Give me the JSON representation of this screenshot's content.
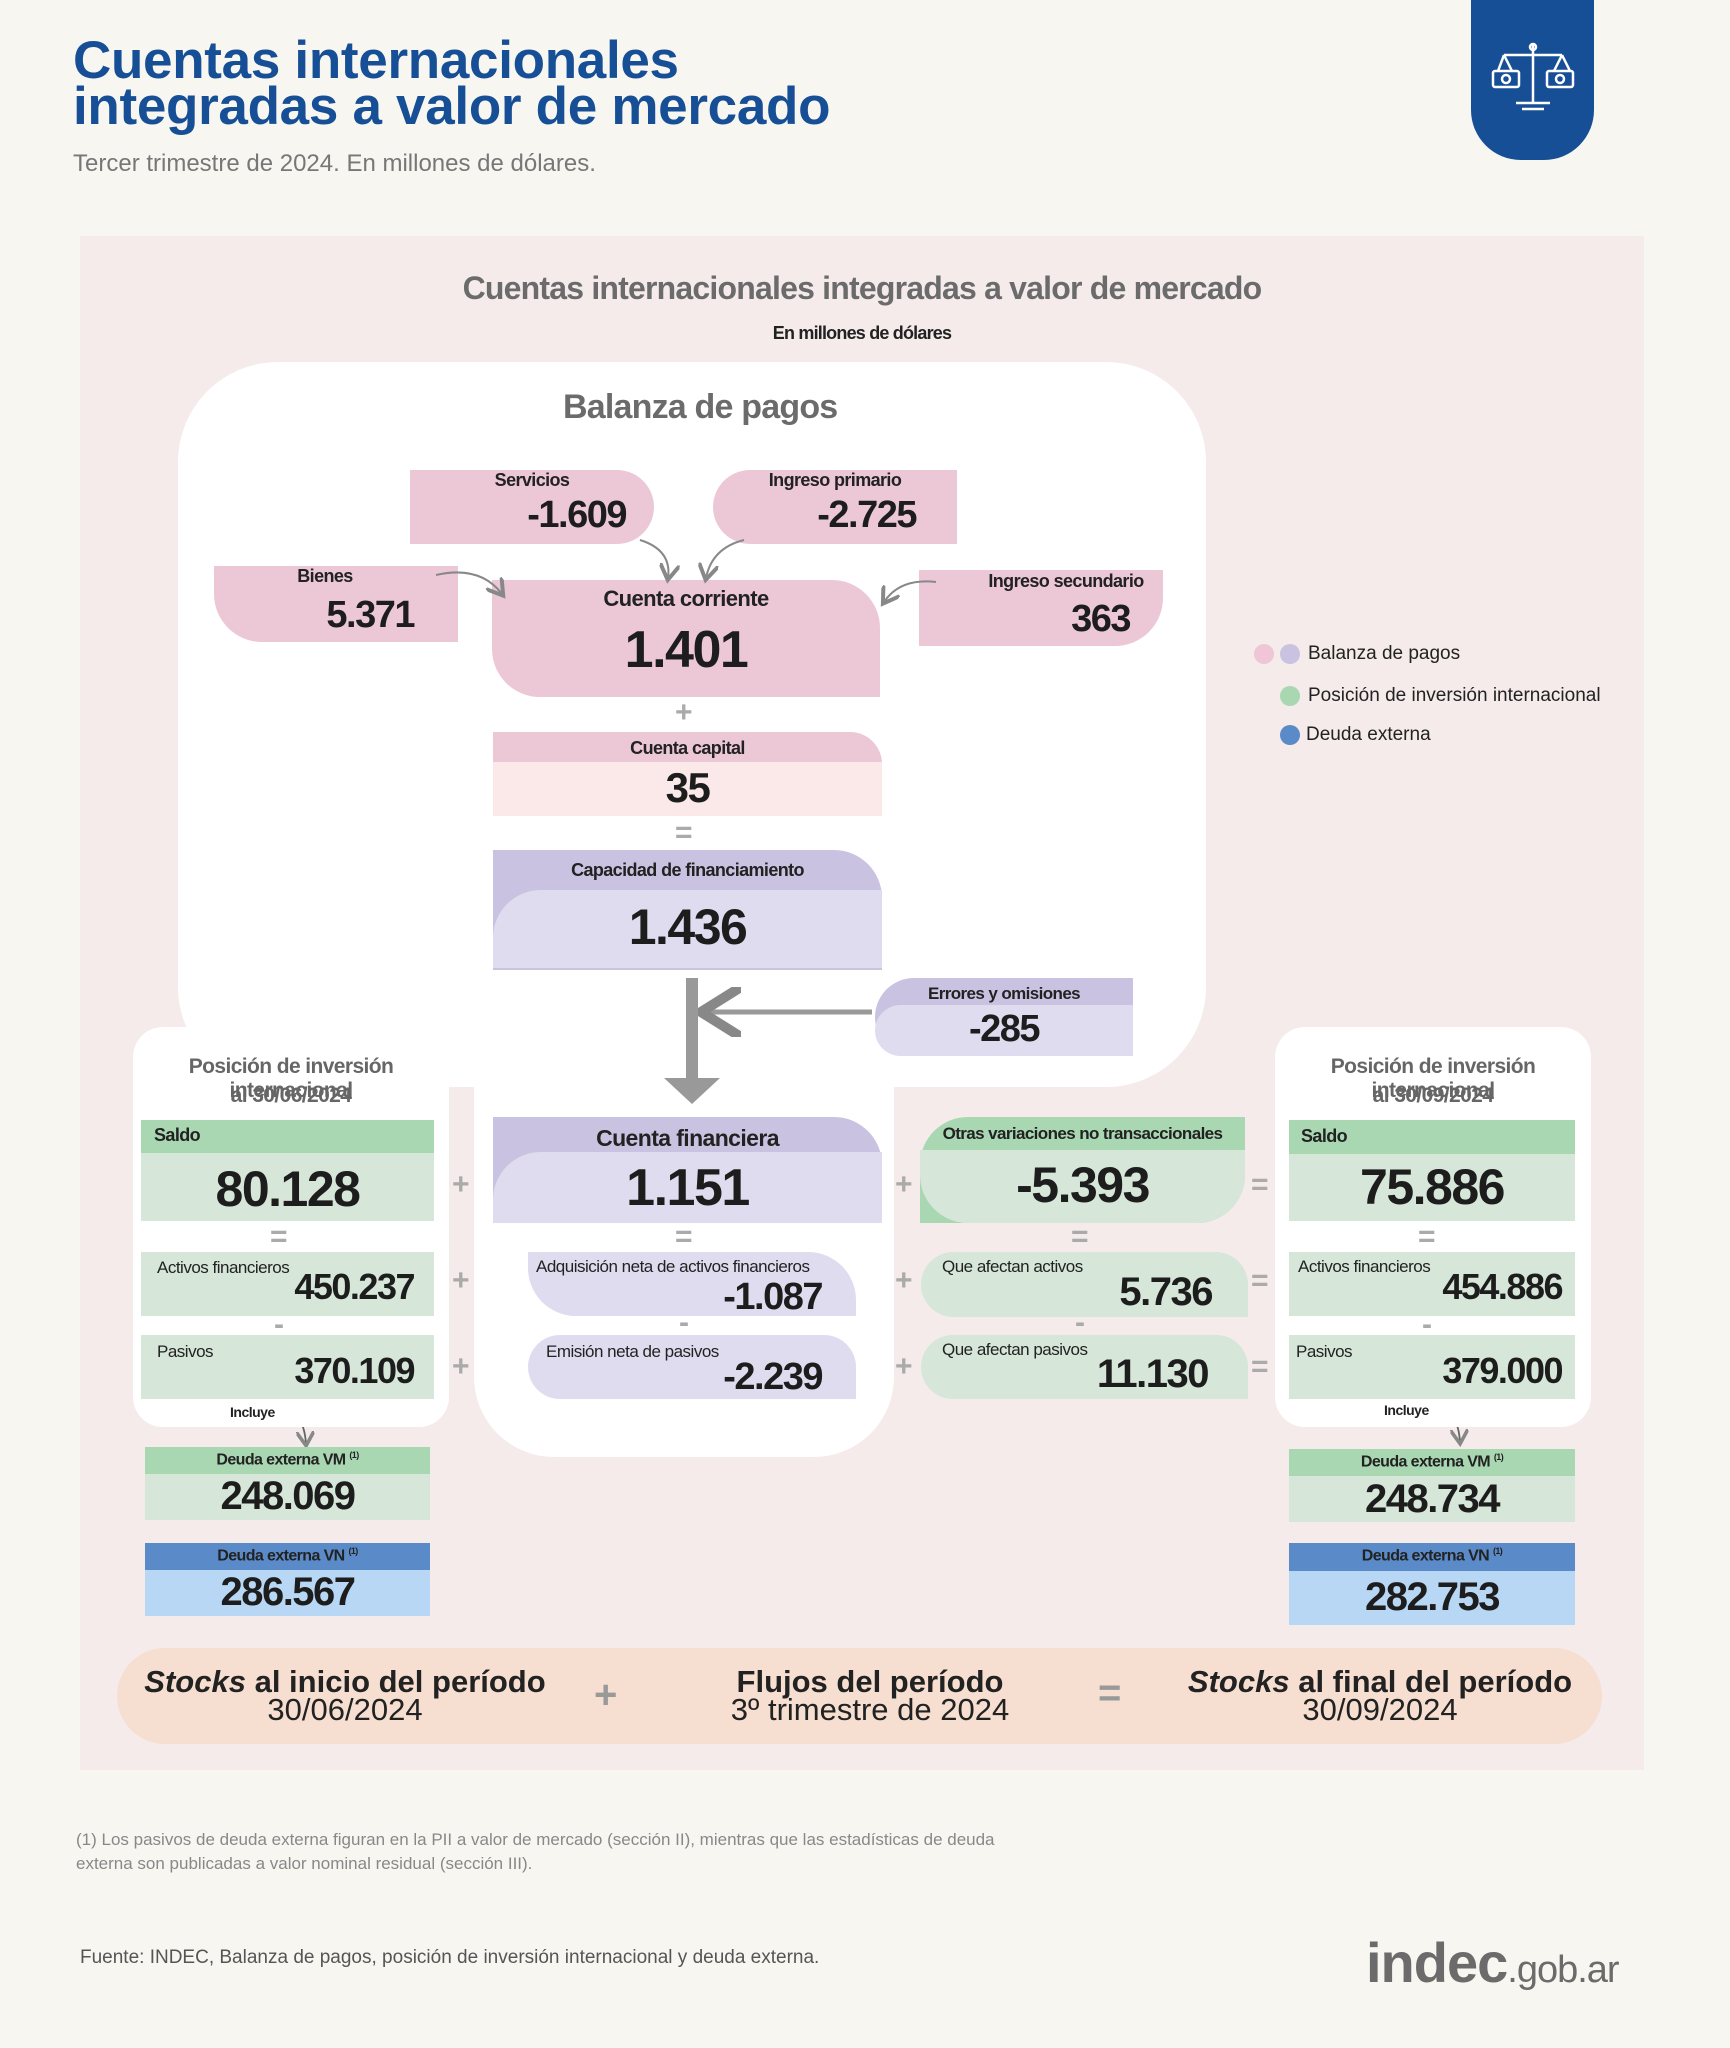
{
  "header": {
    "title_line1": "Cuentas internacionales",
    "title_line2": "integradas a valor de mercado",
    "subtitle": "Tercer trimestre de 2024. En millones de dólares.",
    "badge_icon": "scale-icon"
  },
  "chart": {
    "title": "Cuentas internacionales integradas a valor de mercado",
    "subtitle": "En millones de dólares"
  },
  "balanza": {
    "title": "Balanza de pagos",
    "servicios": {
      "label": "Servicios",
      "value": "-1.609"
    },
    "ingreso_primario": {
      "label": "Ingreso primario",
      "value": "-2.725"
    },
    "bienes": {
      "label": "Bienes",
      "value": "5.371"
    },
    "ingreso_secundario": {
      "label": "Ingreso secundario",
      "value": "363"
    },
    "cuenta_corriente": {
      "label": "Cuenta corriente",
      "value": "1.401"
    },
    "cuenta_capital": {
      "label": "Cuenta capital",
      "value": "35"
    },
    "capacidad": {
      "label": "Capacidad de financiamiento",
      "value": "1.436"
    },
    "errores": {
      "label": "Errores y omisiones",
      "value": "-285"
    }
  },
  "pii_inicio": {
    "title1": "Posición de inversión internacional",
    "title2": "al 30/06/2024",
    "saldo": {
      "label": "Saldo",
      "value": "80.128"
    },
    "activos": {
      "label": "Activos financieros",
      "value": "450.237"
    },
    "pasivos": {
      "label": "Pasivos",
      "value": "370.109"
    },
    "incluye": "Incluye",
    "deuda_vm": {
      "label": "Deuda externa VM",
      "note": "(1)",
      "value": "248.069"
    },
    "deuda_vn": {
      "label": "Deuda externa VN",
      "note": "(1)",
      "value": "286.567"
    }
  },
  "financiera": {
    "label": "Cuenta financiera",
    "value": "1.151",
    "adquisicion": {
      "label": "Adquisición neta de activos financieros",
      "value": "-1.087"
    },
    "emision": {
      "label": "Emisión neta de pasivos",
      "value": "-2.239"
    }
  },
  "otras": {
    "label": "Otras variaciones no transaccionales",
    "value": "-5.393",
    "activos": {
      "label": "Que afectan activos",
      "value": "5.736"
    },
    "pasivos": {
      "label": "Que afectan pasivos",
      "value": "11.130"
    }
  },
  "pii_final": {
    "title1": "Posición de inversión internacional",
    "title2": "al 30/09/2024",
    "saldo": {
      "label": "Saldo",
      "value": "75.886"
    },
    "activos": {
      "label": "Activos financieros",
      "value": "454.886"
    },
    "pasivos": {
      "label": "Pasivos",
      "value": "379.000"
    },
    "incluye": "Incluye",
    "deuda_vm": {
      "label": "Deuda externa VM",
      "note": "(1)",
      "value": "248.734"
    },
    "deuda_vn": {
      "label": "Deuda externa VN",
      "note": "(1)",
      "value": "282.753"
    }
  },
  "legend": {
    "items": [
      {
        "label": "Balanza de pagos",
        "colors": [
          "#f0c6d6",
          "#c9c3e1"
        ]
      },
      {
        "label": "Posición de inversión internacional",
        "colors": [
          "#a9d7b2"
        ]
      },
      {
        "label": "Deuda externa",
        "colors": [
          "#5a8bc8"
        ]
      }
    ]
  },
  "operators": {
    "plus": "+",
    "equals": "=",
    "minus": "-"
  },
  "stocks": {
    "inicio_em": "Stocks",
    "inicio_rest": " al inicio del período",
    "inicio_date": "30/06/2024",
    "flujos": "Flujos del período",
    "flujos_sub": "3º trimestre de 2024",
    "final_em": "Stocks",
    "final_rest": " al final del período",
    "final_date": "30/09/2024"
  },
  "footnote": {
    "line1": "(1) Los pasivos de deuda externa figuran en la PII a valor de mercado (sección II), mientras que las estadísticas de deuda",
    "line2": "externa son publicadas a valor nominal residual (sección III)."
  },
  "source": "Fuente: INDEC, Balanza de pagos, posición de inversión internacional y deuda externa.",
  "logo": {
    "brand": "indec",
    "domain": ".gob.ar"
  }
}
